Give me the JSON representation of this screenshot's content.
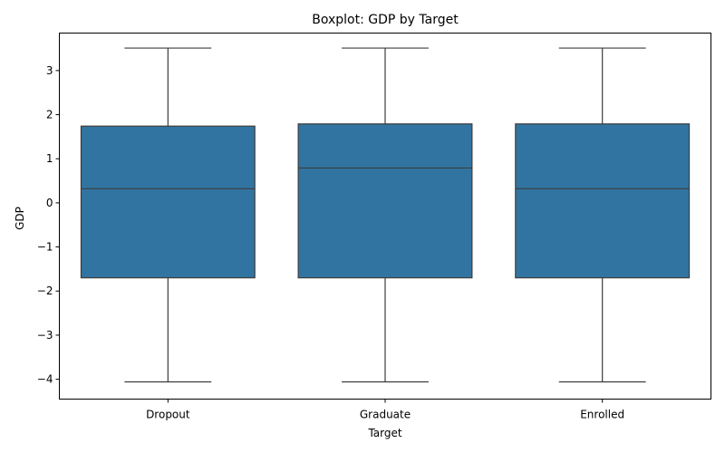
{
  "chart_data": {
    "type": "boxplot",
    "title": "Boxplot: GDP by Target",
    "xlabel": "Target",
    "ylabel": "GDP",
    "ylim": [
      -4.45,
      3.85
    ],
    "yticks": [
      -4,
      -3,
      -2,
      -1,
      0,
      1,
      2,
      3
    ],
    "ytick_labels": [
      "−4",
      "−3",
      "−2",
      "−1",
      "0",
      "1",
      "2",
      "3"
    ],
    "categories": [
      "Dropout",
      "Graduate",
      "Enrolled"
    ],
    "boxes": [
      {
        "category": "Dropout",
        "whisker_low": -4.06,
        "q1": -1.7,
        "median": 0.32,
        "q3": 1.74,
        "whisker_high": 3.51
      },
      {
        "category": "Graduate",
        "whisker_low": -4.06,
        "q1": -1.7,
        "median": 0.79,
        "q3": 1.79,
        "whisker_high": 3.51
      },
      {
        "category": "Enrolled",
        "whisker_low": -4.06,
        "q1": -1.7,
        "median": 0.32,
        "q3": 1.79,
        "whisker_high": 3.51
      }
    ],
    "grid": false,
    "colors": {
      "box_fill": "#3274a1",
      "line": "#3d3d3d"
    }
  }
}
